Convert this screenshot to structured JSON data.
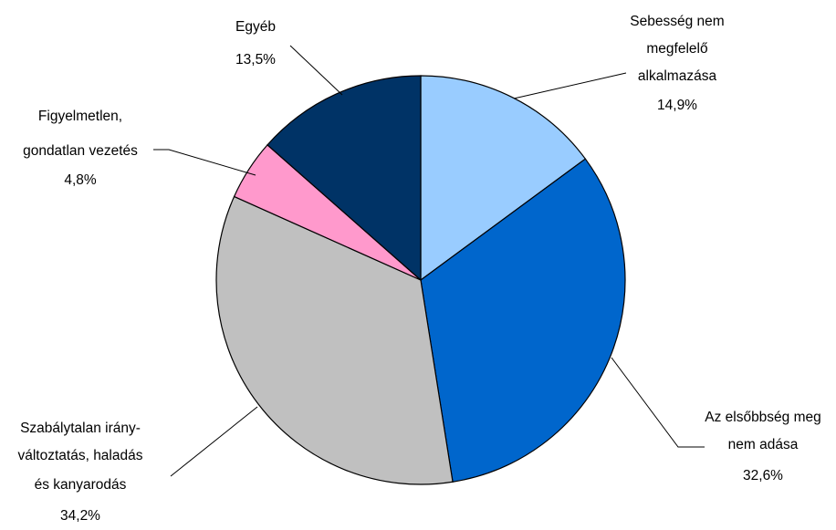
{
  "chart_data": {
    "type": "pie",
    "title": "",
    "slices": [
      {
        "label_lines": [
          "Sebesség nem",
          "megfelelő",
          "alkalmazása"
        ],
        "value_label": "14,9%",
        "value": 14.9,
        "color": "#99ccff"
      },
      {
        "label_lines": [
          "Az elsőbbség meg",
          "nem adása"
        ],
        "value_label": "32,6%",
        "value": 32.6,
        "color": "#0066cc"
      },
      {
        "label_lines": [
          "Szabálytalan irány-",
          "változtatás, haladás",
          "és kanyarodás"
        ],
        "value_label": "34,2%",
        "value": 34.2,
        "color": "#c0c0c0"
      },
      {
        "label_lines": [
          "Figyelmetlen,",
          "gondatlan vezetés"
        ],
        "value_label": "4,8%",
        "value": 4.8,
        "color": "#ff99cc"
      },
      {
        "label_lines": [
          "Egyéb"
        ],
        "value_label": "13,5%",
        "value": 13.5,
        "color": "#003366"
      }
    ]
  }
}
